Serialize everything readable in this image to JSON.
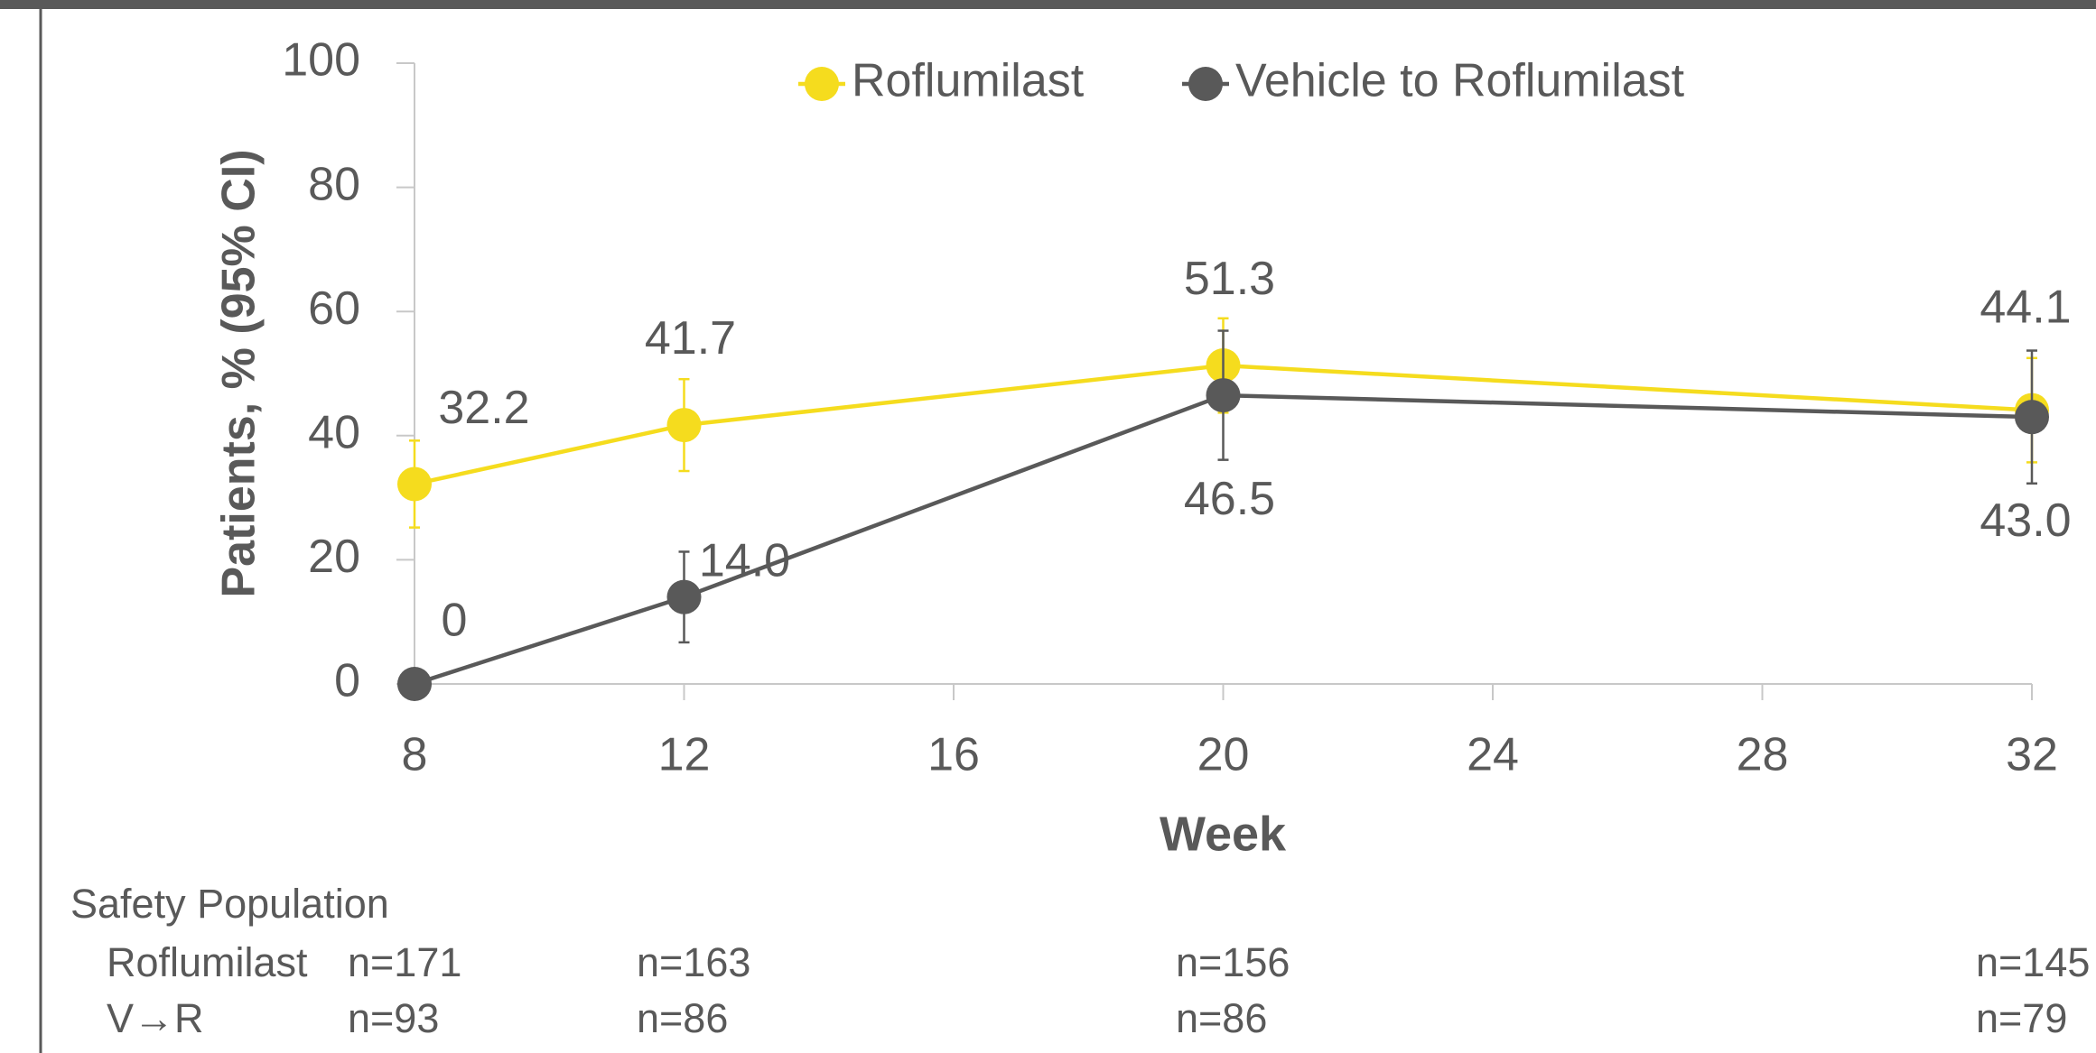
{
  "chart_data": {
    "type": "line",
    "x_label": "Week",
    "y_label": "Patients, % (95% CI)",
    "x": [
      8,
      12,
      20,
      32
    ],
    "xlim": [
      8,
      32
    ],
    "xticks": [
      8,
      12,
      16,
      20,
      24,
      28,
      32
    ],
    "ylim": [
      0,
      100
    ],
    "yticks": [
      0,
      20,
      40,
      60,
      80,
      100
    ],
    "legend": "top",
    "series": [
      {
        "name": "Roflumilast",
        "color": "#f5dc1e",
        "values": [
          32.2,
          41.7,
          51.3,
          44.1
        ],
        "value_labels": [
          "32.2",
          "41.7",
          "51.3",
          "44.1"
        ],
        "errors": [
          7.0,
          7.4,
          7.6,
          8.4
        ]
      },
      {
        "name": "Vehicle to Roflumilast",
        "color": "#595959",
        "values": [
          0,
          14.0,
          46.5,
          43.0
        ],
        "value_labels": [
          "0",
          "14.0",
          "46.5",
          "43.0"
        ],
        "errors": [
          0,
          7.3,
          10.4,
          10.7
        ]
      }
    ]
  },
  "table": {
    "title": "Safety Population",
    "rows": [
      [
        "Roflumilast",
        "n=171",
        "n=163",
        "n=156",
        "n=145"
      ],
      [
        "V→R",
        "n=93",
        "n=86",
        "n=86",
        "n=79"
      ]
    ]
  }
}
